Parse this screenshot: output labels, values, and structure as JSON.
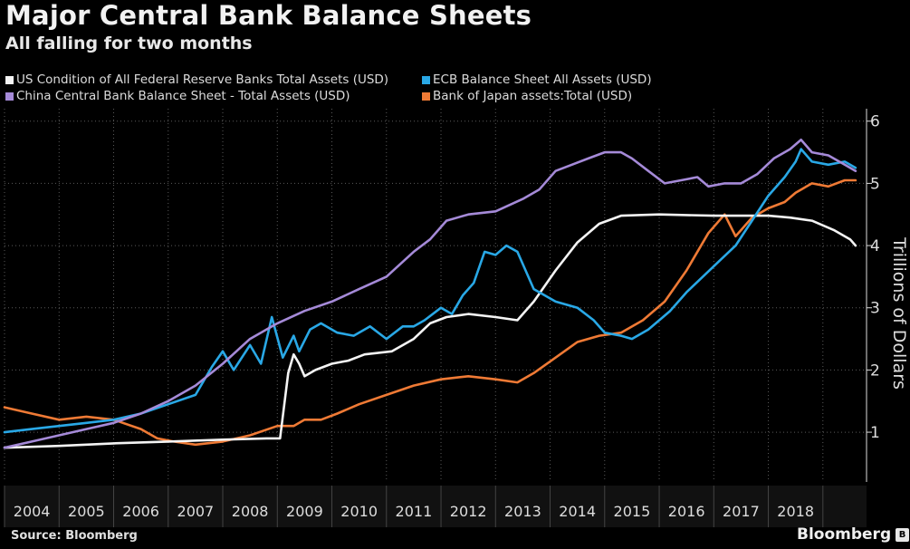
{
  "chart_data": {
    "type": "line",
    "title": "Major Central Bank Balance Sheets",
    "subtitle": "All falling for two months",
    "ylabel": "Trillions of Dollars",
    "xlabel": "",
    "ylim": [
      0.2,
      6.2
    ],
    "xlim": [
      2003.5,
      2019.3
    ],
    "yticks": [
      1,
      2,
      3,
      4,
      5,
      6
    ],
    "categories": [
      "2004",
      "2005",
      "2006",
      "2007",
      "2008",
      "2009",
      "2010",
      "2011",
      "2012",
      "2013",
      "2014",
      "2015",
      "2016",
      "2017",
      "2018"
    ],
    "grid": true,
    "legend_position": "top-left",
    "series": [
      {
        "name": "US Condition of All Federal Reserve Banks Total Assets (USD)",
        "color": "#f4f4f4",
        "x": [
          2003.5,
          2004.5,
          2005.5,
          2006.5,
          2007.5,
          2008.3,
          2008.55,
          2008.7,
          2008.8,
          2008.9,
          2009.0,
          2009.2,
          2009.5,
          2009.8,
          2010.1,
          2010.6,
          2011.0,
          2011.3,
          2011.6,
          2012.0,
          2012.5,
          2012.9,
          2013.2,
          2013.6,
          2014.0,
          2014.4,
          2014.8,
          2015.5,
          2016.5,
          2017.5,
          2017.9,
          2018.3,
          2018.7,
          2019.0,
          2019.1
        ],
        "values": [
          0.75,
          0.78,
          0.82,
          0.85,
          0.88,
          0.9,
          0.9,
          1.95,
          2.25,
          2.1,
          1.9,
          2.0,
          2.1,
          2.15,
          2.25,
          2.3,
          2.5,
          2.75,
          2.85,
          2.9,
          2.85,
          2.8,
          3.1,
          3.6,
          4.05,
          4.35,
          4.48,
          4.5,
          4.48,
          4.48,
          4.45,
          4.4,
          4.25,
          4.1,
          4.0
        ]
      },
      {
        "name": "ECB Balance Sheet All Assets (USD)",
        "color": "#29a8e6",
        "x": [
          2003.5,
          2004.0,
          2004.5,
          2005.0,
          2005.5,
          2006.0,
          2006.5,
          2007.0,
          2007.3,
          2007.5,
          2007.7,
          2008.0,
          2008.2,
          2008.4,
          2008.6,
          2008.8,
          2008.9,
          2009.1,
          2009.3,
          2009.6,
          2009.9,
          2010.2,
          2010.5,
          2010.8,
          2011.0,
          2011.2,
          2011.5,
          2011.7,
          2011.9,
          2012.1,
          2012.3,
          2012.5,
          2012.7,
          2012.9,
          2013.2,
          2013.6,
          2014.0,
          2014.3,
          2014.5,
          2014.8,
          2015.0,
          2015.3,
          2015.7,
          2016.0,
          2016.3,
          2016.6,
          2016.9,
          2017.2,
          2017.5,
          2017.8,
          2018.0,
          2018.1,
          2018.3,
          2018.6,
          2018.9,
          2019.1
        ],
        "values": [
          1.0,
          1.05,
          1.1,
          1.15,
          1.2,
          1.3,
          1.45,
          1.6,
          2.05,
          2.3,
          2.0,
          2.4,
          2.1,
          2.85,
          2.2,
          2.55,
          2.3,
          2.65,
          2.75,
          2.6,
          2.55,
          2.7,
          2.5,
          2.7,
          2.7,
          2.8,
          3.0,
          2.9,
          3.2,
          3.4,
          3.9,
          3.85,
          4.0,
          3.9,
          3.3,
          3.1,
          3.0,
          2.8,
          2.6,
          2.55,
          2.5,
          2.65,
          2.95,
          3.25,
          3.5,
          3.75,
          4.0,
          4.4,
          4.8,
          5.1,
          5.35,
          5.55,
          5.35,
          5.3,
          5.35,
          5.25
        ]
      },
      {
        "name": "China Central Bank Balance Sheet - Total Assets (USD)",
        "color": "#a58ad8",
        "x": [
          2003.5,
          2004.0,
          2004.5,
          2005.0,
          2005.5,
          2006.0,
          2006.5,
          2007.0,
          2007.5,
          2008.0,
          2008.5,
          2009.0,
          2009.5,
          2010.0,
          2010.5,
          2011.0,
          2011.3,
          2011.6,
          2012.0,
          2012.5,
          2013.0,
          2013.3,
          2013.6,
          2013.9,
          2014.2,
          2014.5,
          2014.8,
          2015.0,
          2015.3,
          2015.6,
          2015.9,
          2016.2,
          2016.4,
          2016.7,
          2017.0,
          2017.3,
          2017.6,
          2017.9,
          2018.1,
          2018.3,
          2018.6,
          2018.9,
          2019.1
        ],
        "values": [
          0.75,
          0.85,
          0.95,
          1.05,
          1.15,
          1.3,
          1.5,
          1.75,
          2.1,
          2.5,
          2.75,
          2.95,
          3.1,
          3.3,
          3.5,
          3.9,
          4.1,
          4.4,
          4.5,
          4.55,
          4.75,
          4.9,
          5.2,
          5.3,
          5.4,
          5.5,
          5.5,
          5.4,
          5.2,
          5.0,
          5.05,
          5.1,
          4.95,
          5.0,
          5.0,
          5.15,
          5.4,
          5.55,
          5.7,
          5.5,
          5.45,
          5.3,
          5.2
        ]
      },
      {
        "name": "Bank of Japan assets:Total (USD)",
        "color": "#ef7a35",
        "x": [
          2003.5,
          2004.0,
          2004.5,
          2005.0,
          2005.5,
          2006.0,
          2006.3,
          2006.6,
          2007.0,
          2007.5,
          2008.0,
          2008.5,
          2008.8,
          2009.0,
          2009.3,
          2009.6,
          2010.0,
          2010.5,
          2011.0,
          2011.5,
          2012.0,
          2012.5,
          2012.9,
          2013.2,
          2013.6,
          2014.0,
          2014.4,
          2014.8,
          2015.2,
          2015.6,
          2016.0,
          2016.4,
          2016.7,
          2016.9,
          2017.2,
          2017.5,
          2017.8,
          2018.0,
          2018.3,
          2018.6,
          2018.9,
          2019.1
        ],
        "values": [
          1.4,
          1.3,
          1.2,
          1.25,
          1.2,
          1.05,
          0.9,
          0.85,
          0.8,
          0.85,
          0.95,
          1.1,
          1.1,
          1.2,
          1.2,
          1.3,
          1.45,
          1.6,
          1.75,
          1.85,
          1.9,
          1.85,
          1.8,
          1.95,
          2.2,
          2.45,
          2.55,
          2.6,
          2.8,
          3.1,
          3.6,
          4.2,
          4.5,
          4.15,
          4.45,
          4.6,
          4.7,
          4.85,
          5.0,
          4.95,
          5.05,
          5.05
        ]
      }
    ]
  },
  "legend": [
    {
      "label": "US Condition of All Federal Reserve Banks Total Assets (USD)",
      "color": "#f4f4f4"
    },
    {
      "label": "ECB Balance Sheet All Assets (USD)",
      "color": "#29a8e6"
    },
    {
      "label": "China Central Bank Balance Sheet - Total Assets (USD)",
      "color": "#a58ad8"
    },
    {
      "label": "Bank of Japan assets:Total (USD)",
      "color": "#ef7a35"
    }
  ],
  "footer": {
    "source": "Source: Bloomberg",
    "brand": "Bloomberg",
    "brand_icon": "B",
    "brand_icon_name": "bloomberg-logo-icon"
  },
  "colors": {
    "background": "#000000",
    "grid": "#5a5a5a",
    "axis_text": "#dddddd",
    "x_band": "#111111"
  }
}
